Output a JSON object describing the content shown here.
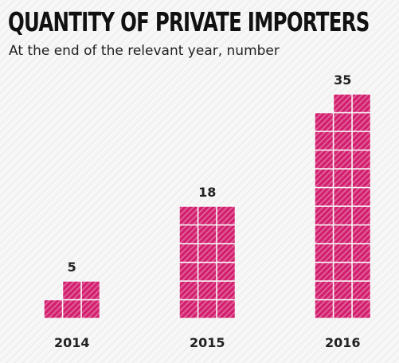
{
  "chart_data": {
    "type": "bar",
    "title": "QUANTITY OF PRIVATE IMPORTERS",
    "subtitle": "At the end of the relevant year, number",
    "categories": [
      "2014",
      "2015",
      "2016"
    ],
    "values": [
      5,
      18,
      35
    ],
    "xlabel": "",
    "ylabel": "",
    "grid": false,
    "color": "#d21f6e"
  }
}
